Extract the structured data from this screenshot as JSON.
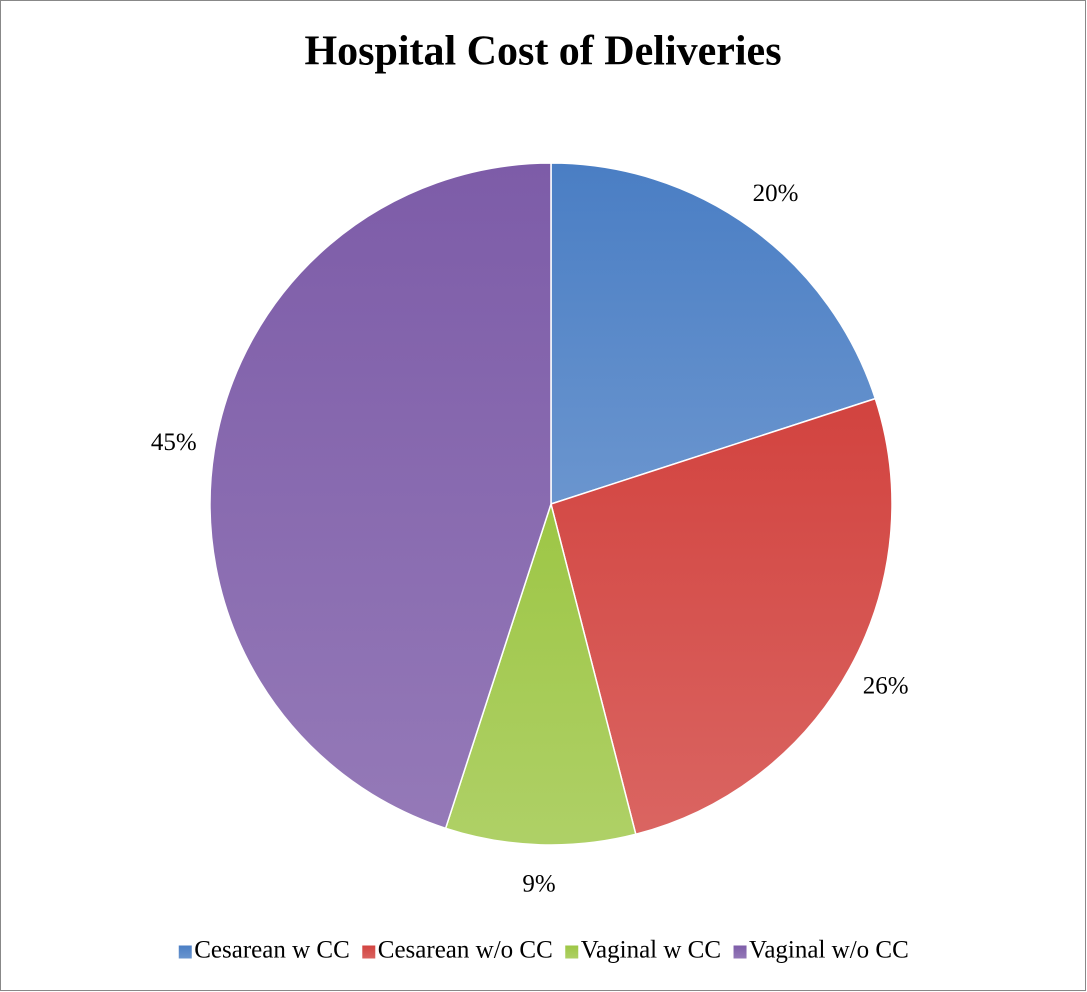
{
  "chart_data": {
    "type": "pie",
    "title": "Hospital Cost of Deliveries",
    "categories": [
      "Cesarean w CC",
      "Cesarean w/o CC",
      "Vaginal w CC",
      "Vaginal w/o CC"
    ],
    "values": [
      20,
      26,
      9,
      45
    ],
    "value_labels": [
      "20%",
      "26%",
      "9%",
      "45%"
    ],
    "colors": [
      "#4a7ec4",
      "#d2433f",
      "#9dc645",
      "#7d5ca8"
    ],
    "legend": "bottom"
  }
}
